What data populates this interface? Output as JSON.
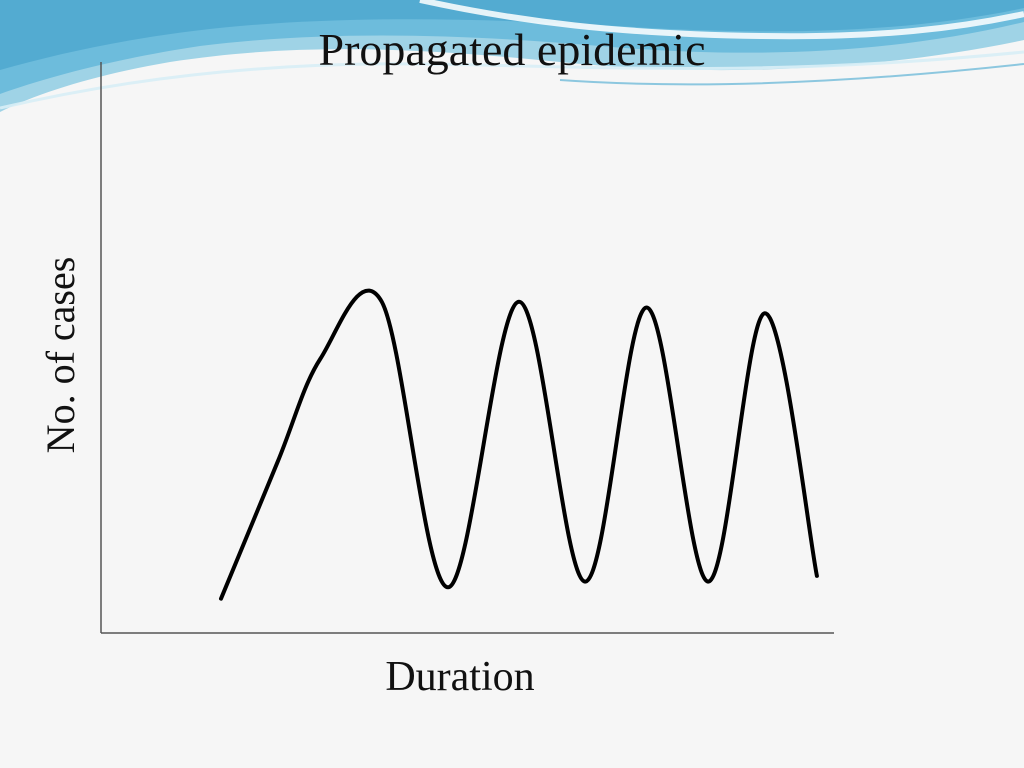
{
  "slide": {
    "title": "Propagated epidemic",
    "banner_colors": [
      "#5fb3d6",
      "#9fd3e6",
      "#d8eef6",
      "#ffffff"
    ]
  },
  "chart_data": {
    "type": "line",
    "title": "Propagated epidemic",
    "xlabel": "Duration",
    "ylabel": "No. of cases",
    "ticks": "none",
    "grid": false,
    "legend": "none",
    "line_color": "#000000",
    "series": [
      {
        "points": [
          [
            0,
            0.06
          ],
          [
            1.2,
            0.3
          ],
          [
            2.1,
            0.48
          ],
          [
            3.4,
            0.58
          ],
          [
            4.8,
            0.08
          ],
          [
            6.3,
            0.58
          ],
          [
            7.7,
            0.09
          ],
          [
            9.0,
            0.57
          ],
          [
            10.3,
            0.09
          ],
          [
            11.5,
            0.56
          ],
          [
            12.6,
            0.1
          ]
        ]
      }
    ]
  }
}
